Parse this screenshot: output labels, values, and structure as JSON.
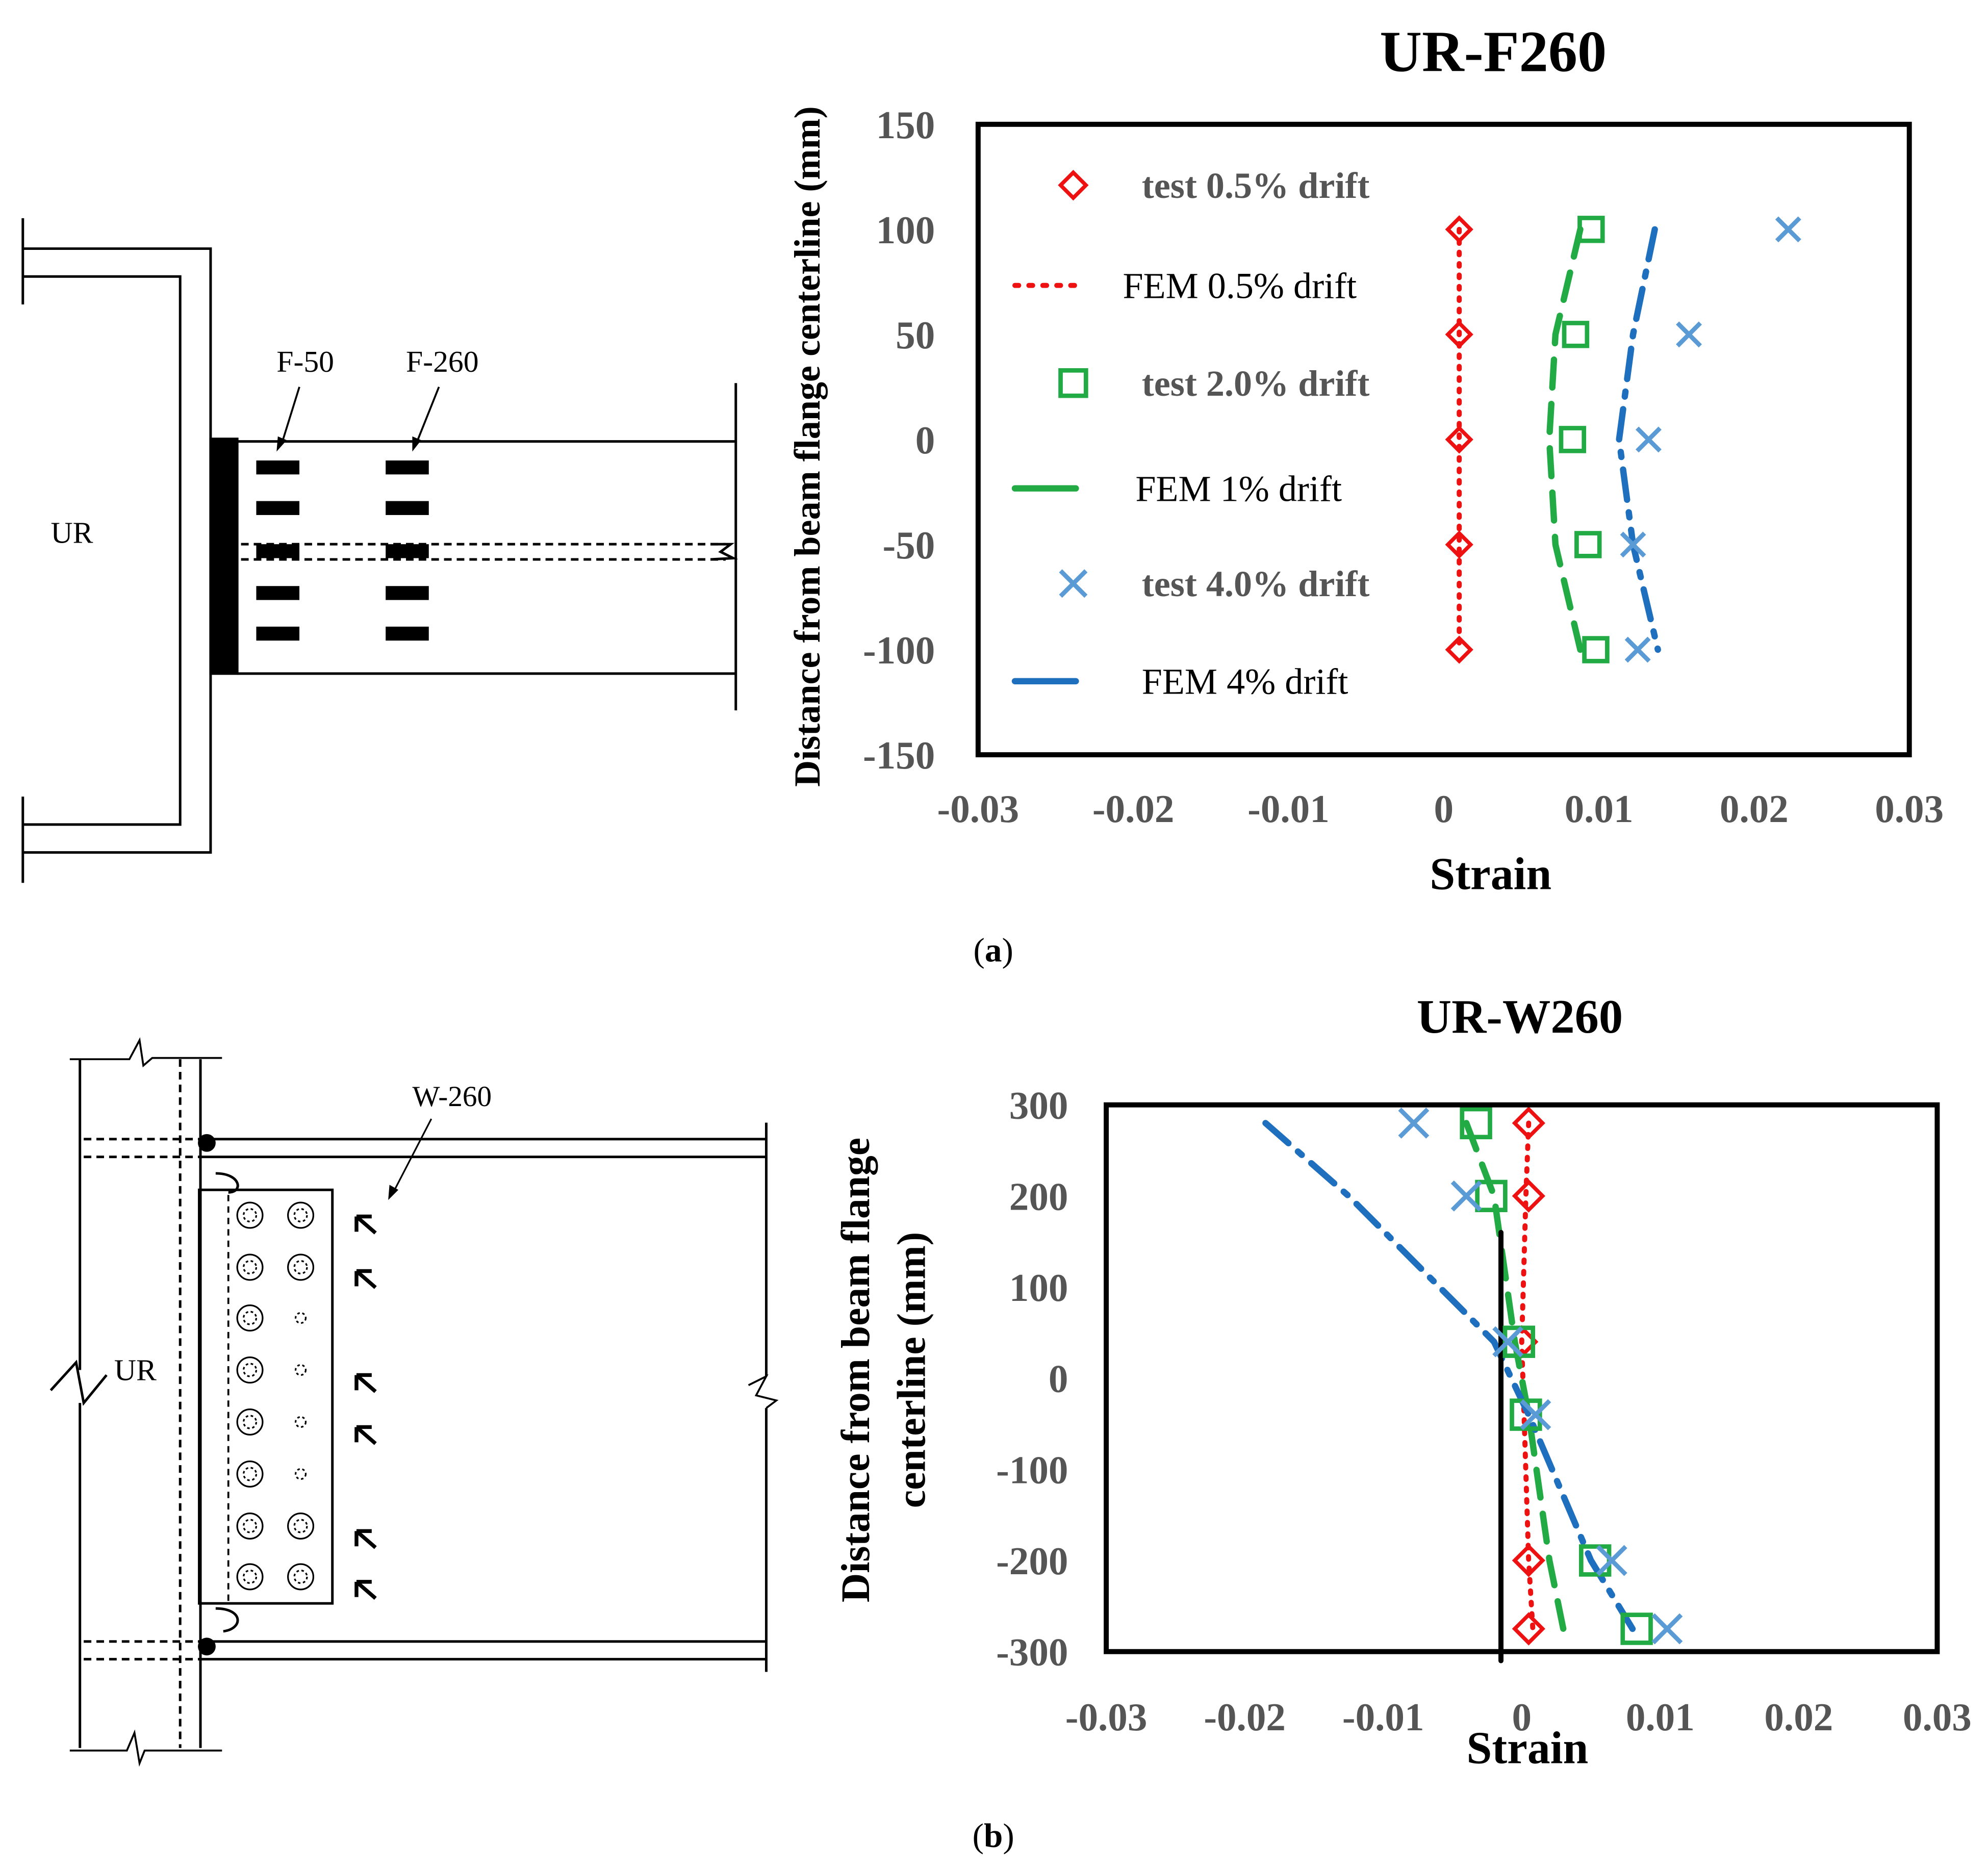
{
  "captions": {
    "a": "(a)",
    "b": "(b)",
    "a_letter": "a",
    "b_letter": "b"
  },
  "drawing_a": {
    "column_label": "UR",
    "gauge_labels": [
      "F-50",
      "F-260"
    ]
  },
  "drawing_b": {
    "column_label": "UR",
    "gauge_label": "W-260"
  },
  "colors": {
    "red": "#ee1111",
    "green": "#22aa44",
    "lightblue": "#5b9bd5",
    "blue": "#1f6fbf",
    "axis": "#000000",
    "tick_text": "#555555"
  },
  "chart_data": [
    {
      "type": "scatter",
      "id": "chart-a",
      "title": "UR-F260",
      "xlabel": "Strain",
      "ylabel": "Distance from beam flange centerline (mm)",
      "xlim": [
        -0.03,
        0.03
      ],
      "ylim": [
        -150,
        150
      ],
      "xticks": [
        -0.03,
        -0.02,
        -0.01,
        0,
        0.01,
        0.02,
        0.03
      ],
      "xtick_labels": [
        "-0.03",
        "-0.02",
        "-0.01",
        "0",
        "0.01",
        "0.02",
        "0.03"
      ],
      "yticks": [
        150,
        100,
        50,
        0,
        -50,
        -100,
        -150
      ],
      "ytick_labels": [
        "150",
        "100",
        "50",
        "0",
        "-50",
        "-100",
        "-150"
      ],
      "legend_position": "left",
      "legend": [
        {
          "label": "test 0.5% drift",
          "marker": "diamond",
          "color": "#ee1111",
          "bold": true
        },
        {
          "label": "FEM 0.5% drift",
          "line": "dot",
          "color": "#ee1111",
          "bold": false
        },
        {
          "label": "test 2.0% drift",
          "marker": "square",
          "color": "#22aa44",
          "bold": true
        },
        {
          "label": "FEM 1% drift",
          "line": "dash",
          "color": "#22aa44",
          "bold": false
        },
        {
          "label": "test 4.0% drift",
          "marker": "x",
          "color": "#5b9bd5",
          "bold": true
        },
        {
          "label": "FEM 4% drift",
          "line": "dashdot",
          "color": "#1f6fbf",
          "bold": false
        }
      ],
      "series": [
        {
          "name": "test 0.5% drift",
          "marker": "diamond",
          "color": "#ee1111",
          "x": [
            0.001,
            0.001,
            0.001,
            0.001,
            0.001
          ],
          "y": [
            100,
            50,
            0,
            -50,
            -100
          ]
        },
        {
          "name": "FEM 0.5% drift",
          "line": "dot",
          "color": "#ee1111",
          "x": [
            0.001,
            0.001,
            0.001,
            0.001,
            0.001
          ],
          "y": [
            100,
            50,
            0,
            -50,
            -100
          ]
        },
        {
          "name": "test 2.0% drift",
          "marker": "square",
          "color": "#22aa44",
          "x": [
            0.0095,
            0.0085,
            0.0083,
            0.0093,
            0.0098
          ],
          "y": [
            100,
            50,
            0,
            -50,
            -100
          ]
        },
        {
          "name": "FEM 1% drift",
          "line": "dash",
          "color": "#22aa44",
          "x": [
            0.0088,
            0.0072,
            0.0068,
            0.0072,
            0.0088
          ],
          "y": [
            100,
            50,
            0,
            -50,
            -100
          ]
        },
        {
          "name": "test 4.0% drift",
          "marker": "x",
          "color": "#5b9bd5",
          "x": [
            0.0222,
            0.0158,
            0.0132,
            0.0122,
            0.0125
          ],
          "y": [
            100,
            50,
            0,
            -50,
            -100
          ]
        },
        {
          "name": "FEM 4% drift",
          "line": "dashdot",
          "color": "#1f6fbf",
          "x": [
            0.0136,
            0.0122,
            0.0113,
            0.0122,
            0.0138
          ],
          "y": [
            100,
            50,
            0,
            -50,
            -100
          ]
        }
      ]
    },
    {
      "type": "scatter",
      "id": "chart-b",
      "title": "UR-W260",
      "xlabel": "Strain",
      "ylabel": "Distance from beam flange centerline (mm)",
      "ylabel_lines": [
        "Distance from beam flange",
        "centerline (mm)"
      ],
      "xlim": [
        -0.03,
        0.03
      ],
      "ylim": [
        -300,
        300
      ],
      "xticks": [
        -0.03,
        -0.02,
        -0.01,
        0,
        0.01,
        0.02,
        0.03
      ],
      "xtick_labels": [
        "-0.03",
        "-0.02",
        "-0.01",
        "0",
        "0.01",
        "0.02",
        "0.03"
      ],
      "yticks": [
        300,
        200,
        100,
        0,
        -100,
        -200,
        -300
      ],
      "ytick_labels": [
        "300",
        "200",
        "100",
        "0",
        "-100",
        "-200",
        "-300"
      ],
      "series": [
        {
          "name": "test 0.5% drift",
          "marker": "diamond",
          "color": "#ee1111",
          "x": [
            0.0005,
            0.0005,
            0.0,
            0.0005,
            0.0005
          ],
          "y": [
            280,
            200,
            40,
            -200,
            -275
          ]
        },
        {
          "name": "FEM 0.5% drift",
          "line": "dot",
          "color": "#ee1111",
          "x": [
            0.0005,
            0.0003,
            0.0,
            0.0005,
            0.0008
          ],
          "y": [
            280,
            200,
            40,
            -200,
            -275
          ]
        },
        {
          "name": "test 2.0% drift",
          "marker": "square",
          "color": "#22aa44",
          "x": [
            -0.0033,
            -0.0022,
            -0.0002,
            0.0003,
            0.0053,
            0.0083
          ],
          "y": [
            280,
            200,
            40,
            -40,
            -200,
            -275
          ]
        },
        {
          "name": "FEM 1% drift",
          "line": "dash",
          "color": "#22aa44",
          "x": [
            -0.004,
            -0.002,
            -0.0005,
            0.0005,
            0.002,
            0.003
          ],
          "y": [
            280,
            200,
            40,
            -40,
            -200,
            -275
          ]
        },
        {
          "name": "test 4.0% drift",
          "marker": "x",
          "color": "#5b9bd5",
          "x": [
            -0.0078,
            -0.004,
            -0.001,
            0.001,
            0.0065,
            0.0105
          ],
          "y": [
            280,
            200,
            40,
            -40,
            -200,
            -275
          ]
        },
        {
          "name": "FEM 4% drift",
          "line": "dashdot",
          "color": "#1f6fbf",
          "x": [
            -0.0185,
            -0.0125,
            -0.002,
            0.0005,
            0.005,
            0.008
          ],
          "y": [
            280,
            200,
            40,
            -40,
            -200,
            -275
          ]
        },
        {
          "name": "reference line",
          "line": "solid",
          "color": "#000000",
          "x": [
            -0.0015,
            -0.0015
          ],
          "y": [
            160,
            -310
          ]
        }
      ]
    }
  ]
}
